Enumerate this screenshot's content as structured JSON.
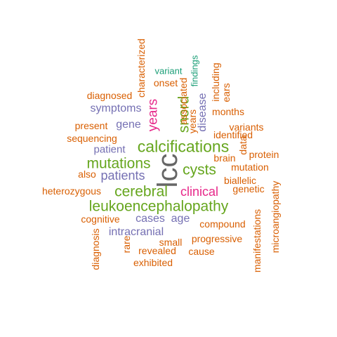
{
  "colors": {
    "orange": "#d95f02",
    "purple": "#7570b3",
    "pink": "#e7298a",
    "green": "#66a61e",
    "teal": "#1b9e77",
    "gray": "#666666"
  },
  "words": [
    {
      "text": "lcc",
      "color": "gray",
      "orientation": "vertical"
    },
    {
      "text": "calcifications",
      "color": "green",
      "orientation": "horizontal"
    },
    {
      "text": "leukoencephalopathy",
      "color": "green",
      "orientation": "horizontal"
    },
    {
      "text": "cerebral",
      "color": "green",
      "orientation": "horizontal"
    },
    {
      "text": "mutations",
      "color": "green",
      "orientation": "horizontal"
    },
    {
      "text": "cysts",
      "color": "green",
      "orientation": "horizontal"
    },
    {
      "text": "snord",
      "color": "green",
      "orientation": "vertical"
    },
    {
      "text": "years",
      "color": "pink",
      "orientation": "vertical"
    },
    {
      "text": "clinical",
      "color": "pink",
      "orientation": "horizontal"
    },
    {
      "text": "patients",
      "color": "purple",
      "orientation": "horizontal"
    },
    {
      "text": "symptoms",
      "color": "purple",
      "orientation": "horizontal"
    },
    {
      "text": "gene",
      "color": "purple",
      "orientation": "horizontal"
    },
    {
      "text": "patient",
      "color": "purple",
      "orientation": "horizontal"
    },
    {
      "text": "disease",
      "color": "purple",
      "orientation": "vertical"
    },
    {
      "text": "cases",
      "color": "purple",
      "orientation": "horizontal"
    },
    {
      "text": "age",
      "color": "purple",
      "orientation": "horizontal"
    },
    {
      "text": "intracranial",
      "color": "purple",
      "orientation": "horizontal"
    },
    {
      "text": "variant",
      "color": "teal",
      "orientation": "horizontal"
    },
    {
      "text": "findings",
      "color": "teal",
      "orientation": "vertical"
    },
    {
      "text": "characterized",
      "color": "orange",
      "orientation": "vertical"
    },
    {
      "text": "diagnosed",
      "color": "orange",
      "orientation": "horizontal"
    },
    {
      "text": "onset",
      "color": "orange",
      "orientation": "horizontal"
    },
    {
      "text": "associated",
      "color": "orange",
      "orientation": "vertical"
    },
    {
      "text": "years",
      "color": "orange",
      "orientation": "vertical"
    },
    {
      "text": "including",
      "color": "orange",
      "orientation": "vertical"
    },
    {
      "text": "ears",
      "color": "orange",
      "orientation": "vertical"
    },
    {
      "text": "months",
      "color": "orange",
      "orientation": "horizontal"
    },
    {
      "text": "present",
      "color": "orange",
      "orientation": "horizontal"
    },
    {
      "text": "sequencing",
      "color": "orange",
      "orientation": "horizontal"
    },
    {
      "text": "variants",
      "color": "orange",
      "orientation": "horizontal"
    },
    {
      "text": "identified",
      "color": "orange",
      "orientation": "horizontal"
    },
    {
      "text": "data",
      "color": "orange",
      "orientation": "vertical"
    },
    {
      "text": "protein",
      "color": "orange",
      "orientation": "horizontal"
    },
    {
      "text": "brain",
      "color": "orange",
      "orientation": "horizontal"
    },
    {
      "text": "mutation",
      "color": "orange",
      "orientation": "horizontal"
    },
    {
      "text": "also",
      "color": "orange",
      "orientation": "horizontal"
    },
    {
      "text": "biallelic",
      "color": "orange",
      "orientation": "horizontal"
    },
    {
      "text": "genetic",
      "color": "orange",
      "orientation": "horizontal"
    },
    {
      "text": "heterozygous",
      "color": "orange",
      "orientation": "horizontal"
    },
    {
      "text": "microangiopathy",
      "color": "orange",
      "orientation": "vertical"
    },
    {
      "text": "cognitive",
      "color": "orange",
      "orientation": "horizontal"
    },
    {
      "text": "compound",
      "color": "orange",
      "orientation": "horizontal"
    },
    {
      "text": "manifestations",
      "color": "orange",
      "orientation": "vertical"
    },
    {
      "text": "small",
      "color": "orange",
      "orientation": "horizontal"
    },
    {
      "text": "progressive",
      "color": "orange",
      "orientation": "horizontal"
    },
    {
      "text": "diagnosis",
      "color": "orange",
      "orientation": "vertical"
    },
    {
      "text": "rare",
      "color": "orange",
      "orientation": "vertical"
    },
    {
      "text": "revealed",
      "color": "orange",
      "orientation": "horizontal"
    },
    {
      "text": "cause",
      "color": "orange",
      "orientation": "horizontal"
    },
    {
      "text": "exhibited",
      "color": "orange",
      "orientation": "horizontal"
    }
  ]
}
